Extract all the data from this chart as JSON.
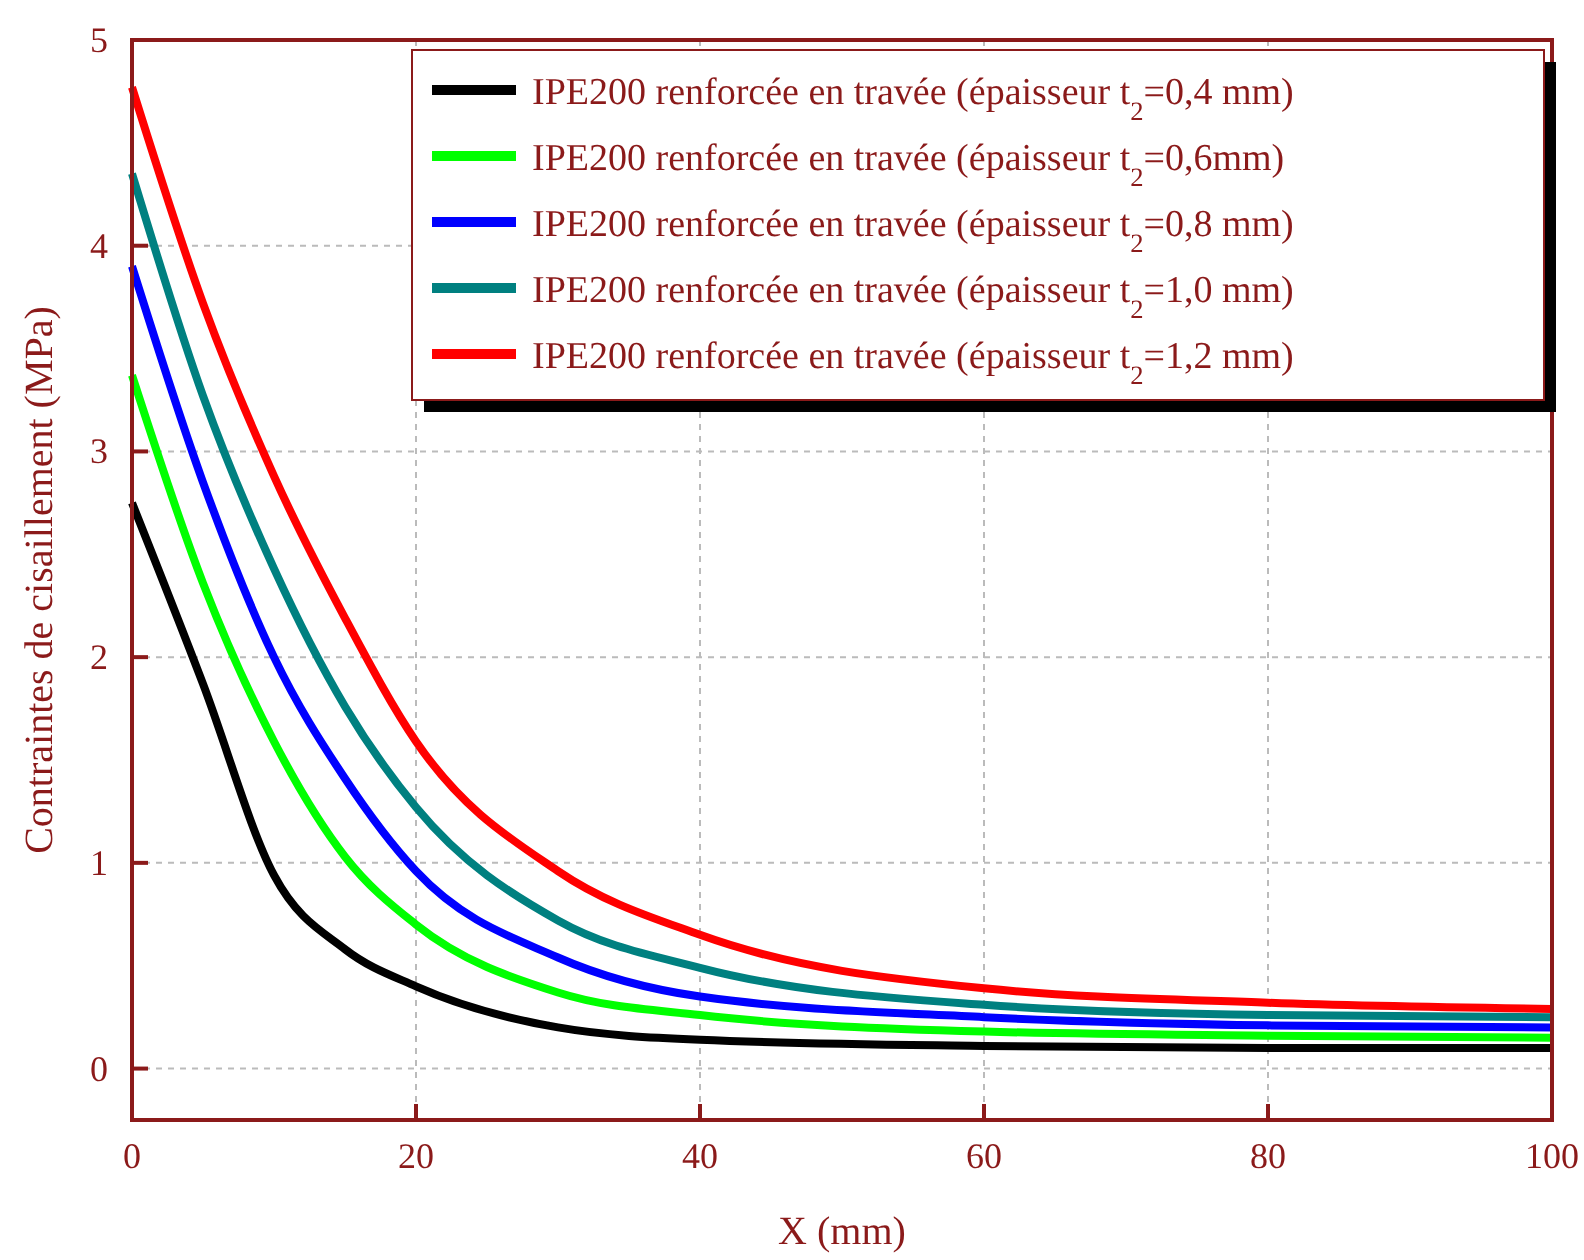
{
  "chart_data": {
    "type": "line",
    "xlabel": "X (mm)",
    "ylabel": "Contraintes de cisaillement (MPa)",
    "x": [
      0,
      5,
      10,
      15,
      20,
      30,
      40,
      60,
      80,
      100
    ],
    "xlim": [
      0,
      100
    ],
    "xticks": [
      0,
      20,
      40,
      60,
      80,
      100
    ],
    "ylim": [
      -0.25,
      5
    ],
    "yticks": [
      0,
      1,
      2,
      3,
      4,
      5
    ],
    "grid": true,
    "legend": "top right",
    "line_style": "solid",
    "marker": "none",
    "series": [
      {
        "name": "IPE200 renforcée en travée (épaisseur t$_{2}$=0,4 mm)",
        "color": "#000000",
        "values": [
          2.75,
          1.87,
          0.94,
          0.58,
          0.4,
          0.2,
          0.14,
          0.11,
          0.1,
          0.1
        ]
      },
      {
        "name": "IPE200 renforcée en travée (épaisseur t$_{2}$=0,6mm)",
        "color": "#00ff00",
        "values": [
          3.37,
          2.36,
          1.59,
          1.03,
          0.7,
          0.37,
          0.26,
          0.18,
          0.16,
          0.15
        ]
      },
      {
        "name": "IPE200 renforcée en travée (épaisseur t$_{2}$=0,8 mm)",
        "color": "#0000ff",
        "values": [
          3.9,
          2.85,
          2.0,
          1.41,
          0.96,
          0.54,
          0.35,
          0.25,
          0.21,
          0.2
        ]
      },
      {
        "name": "IPE200 renforcée en travée (épaisseur t$_{2}$=1,0 mm)",
        "color": "#008080",
        "values": [
          4.35,
          3.27,
          2.43,
          1.76,
          1.27,
          0.72,
          0.49,
          0.31,
          0.26,
          0.25
        ]
      },
      {
        "name": "IPE200 renforcée en travée (épaisseur t$_{2}$=1,2 mm)",
        "color": "#ff0000",
        "values": [
          4.77,
          3.72,
          2.88,
          2.19,
          1.59,
          0.96,
          0.65,
          0.39,
          0.32,
          0.29
        ]
      }
    ]
  }
}
